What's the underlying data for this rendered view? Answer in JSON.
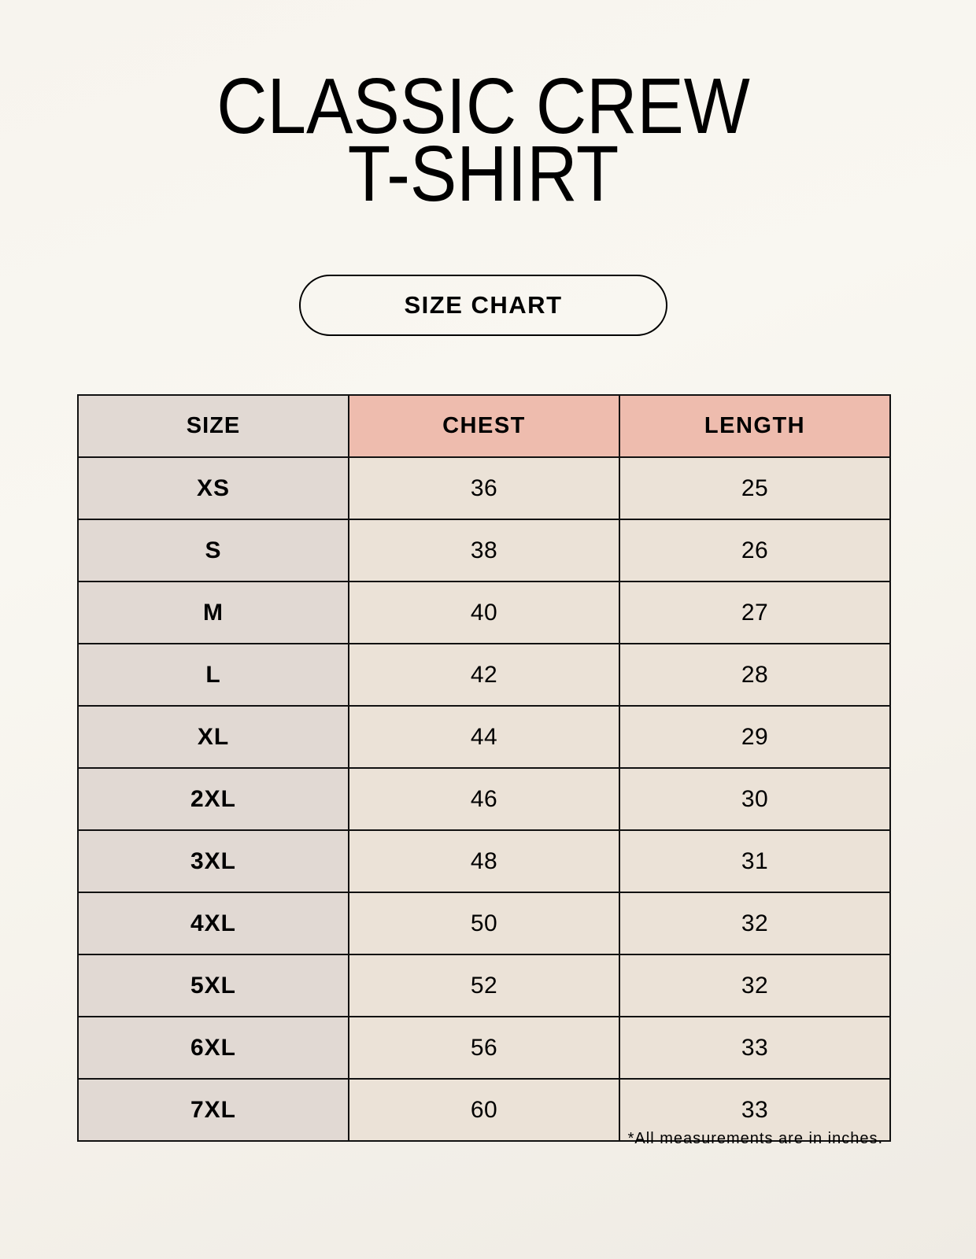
{
  "title": {
    "line1": "CLASSIC CREW",
    "line2": "T-SHIRT"
  },
  "badge": "SIZE CHART",
  "colors": {
    "size_column": "#e1d9d3",
    "header_accent": "#eebcae",
    "value_cells": "#ebe2d7"
  },
  "table": {
    "headers": [
      "SIZE",
      "CHEST",
      "LENGTH"
    ],
    "rows": [
      [
        "XS",
        "36",
        "25"
      ],
      [
        "S",
        "38",
        "26"
      ],
      [
        "M",
        "40",
        "27"
      ],
      [
        "L",
        "42",
        "28"
      ],
      [
        "XL",
        "44",
        "29"
      ],
      [
        "2XL",
        "46",
        "30"
      ],
      [
        "3XL",
        "48",
        "31"
      ],
      [
        "4XL",
        "50",
        "32"
      ],
      [
        "5XL",
        "52",
        "32"
      ],
      [
        "6XL",
        "56",
        "33"
      ],
      [
        "7XL",
        "60",
        "33"
      ]
    ]
  },
  "footnote": "*All measurements are in inches."
}
